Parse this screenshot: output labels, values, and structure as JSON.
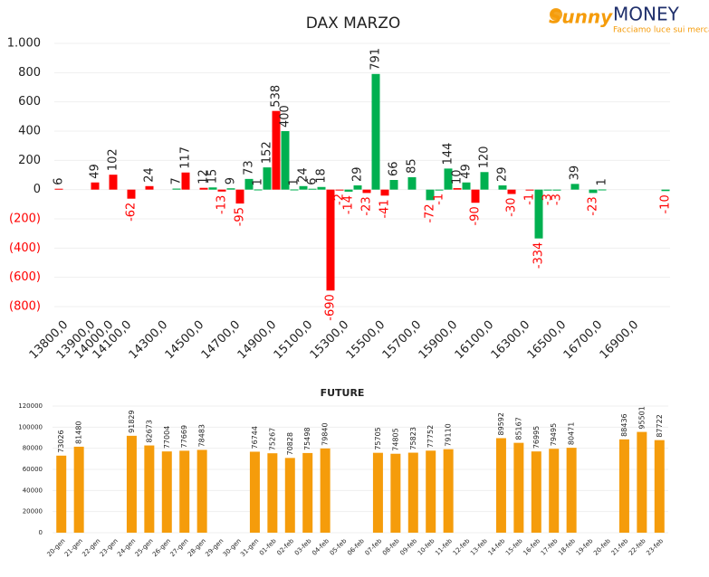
{
  "logo": {
    "brand": "Sunny",
    "brand2": "MONEY",
    "tagline": "Facciamo luce sui mercati"
  },
  "chart_data": [
    {
      "type": "bar",
      "title": "DAX MARZO",
      "categories": [
        "13800,0",
        null,
        null,
        "13900,0",
        null,
        "14000,0",
        null,
        "14100,0",
        null,
        null,
        null,
        "14300,0",
        null,
        null,
        null,
        "14500,0",
        null,
        null,
        null,
        "14700,0",
        null,
        null,
        null,
        "14900,0",
        null,
        null,
        null,
        "15100,0",
        null,
        null,
        null,
        "15300,0",
        null,
        null,
        null,
        "15500,0",
        null,
        null,
        null,
        "15700,0",
        null,
        null,
        null,
        "15900,0",
        null,
        null,
        null,
        "16100,0",
        null,
        null,
        null,
        "16300,0",
        null,
        null,
        null,
        "16500,0",
        null,
        null,
        null,
        "16700,0",
        null,
        null,
        null,
        "16900,0",
        null,
        null,
        null,
        null
      ],
      "values": [
        6,
        null,
        null,
        null,
        49,
        null,
        102,
        null,
        -62,
        null,
        24,
        null,
        null,
        7,
        117,
        null,
        12,
        15,
        -13,
        9,
        -95,
        73,
        1,
        152,
        538,
        400,
        1,
        24,
        6,
        18,
        -690,
        -2,
        -14,
        29,
        -23,
        791,
        -41,
        66,
        null,
        85,
        null,
        -72,
        -1,
        144,
        10,
        49,
        -90,
        120,
        null,
        29,
        -30,
        null,
        -1,
        -334,
        -3,
        -3,
        null,
        39,
        null,
        -23,
        1,
        null,
        null,
        null,
        null,
        null,
        null,
        -10
      ],
      "colors": [
        "#ff0000",
        null,
        null,
        null,
        "#ff0000",
        null,
        "#ff0000",
        null,
        "#ff0000",
        null,
        "#ff0000",
        null,
        null,
        "#00b050",
        "#ff0000",
        null,
        "#ff0000",
        "#00b050",
        "#ff0000",
        "#00b050",
        "#ff0000",
        "#00b050",
        "#00b050",
        "#00b050",
        "#ff0000",
        "#00b050",
        "#00b050",
        "#00b050",
        "#00b050",
        "#00b050",
        "#ff0000",
        "#ff0000",
        "#00b050",
        "#00b050",
        "#ff0000",
        "#00b050",
        "#ff0000",
        "#00b050",
        null,
        "#00b050",
        null,
        "#00b050",
        "#00b050",
        "#00b050",
        "#ff0000",
        "#00b050",
        "#ff0000",
        "#00b050",
        null,
        "#00b050",
        "#ff0000",
        null,
        "#ff0000",
        "#00b050",
        "#00b050",
        "#00b050",
        null,
        "#00b050",
        null,
        "#00b050",
        "#00b050",
        null,
        null,
        null,
        null,
        null,
        null,
        "#00b050"
      ],
      "negative_color": "#ff0000",
      "ylim": [
        -800,
        1000
      ],
      "yticks": [
        {
          "value": -800,
          "label": "(800)"
        },
        {
          "value": -600,
          "label": "(600)"
        },
        {
          "value": -400,
          "label": "(400)"
        },
        {
          "value": -200,
          "label": "(200)"
        },
        0,
        200,
        400,
        600,
        800,
        {
          "value": 1000,
          "label": "1.000"
        }
      ],
      "grid": true
    },
    {
      "type": "bar",
      "title": "FUTURE",
      "categories": [
        "20-gen",
        "21-gen",
        "22-gen",
        "23-gen",
        "24-gen",
        "25-gen",
        "26-gen",
        "27-gen",
        "28-gen",
        "29-gen",
        "30-gen",
        "31-gen",
        "01-feb",
        "02-feb",
        "03-feb",
        "04-feb",
        "05-feb",
        "06-feb",
        "07-feb",
        "08-feb",
        "09-feb",
        "10-feb",
        "11-feb",
        "12-feb",
        "13-feb",
        "14-feb",
        "15-feb",
        "16-feb",
        "17-feb",
        "18-feb",
        "19-feb",
        "20-feb",
        "21-feb",
        "22-feb",
        "23-feb"
      ],
      "values": [
        73026,
        81480,
        null,
        null,
        91829,
        82673,
        77004,
        77669,
        78483,
        null,
        null,
        76744,
        75267,
        70828,
        75498,
        79840,
        null,
        null,
        75705,
        74805,
        75823,
        77752,
        79110,
        null,
        null,
        89592,
        85167,
        76995,
        79495,
        80471,
        null,
        null,
        88436,
        95501,
        87722
      ],
      "color": "#f59c0b",
      "ylim": [
        0,
        120000
      ],
      "yticks": [
        0,
        20000,
        40000,
        60000,
        80000,
        100000,
        120000
      ],
      "grid": true
    }
  ]
}
